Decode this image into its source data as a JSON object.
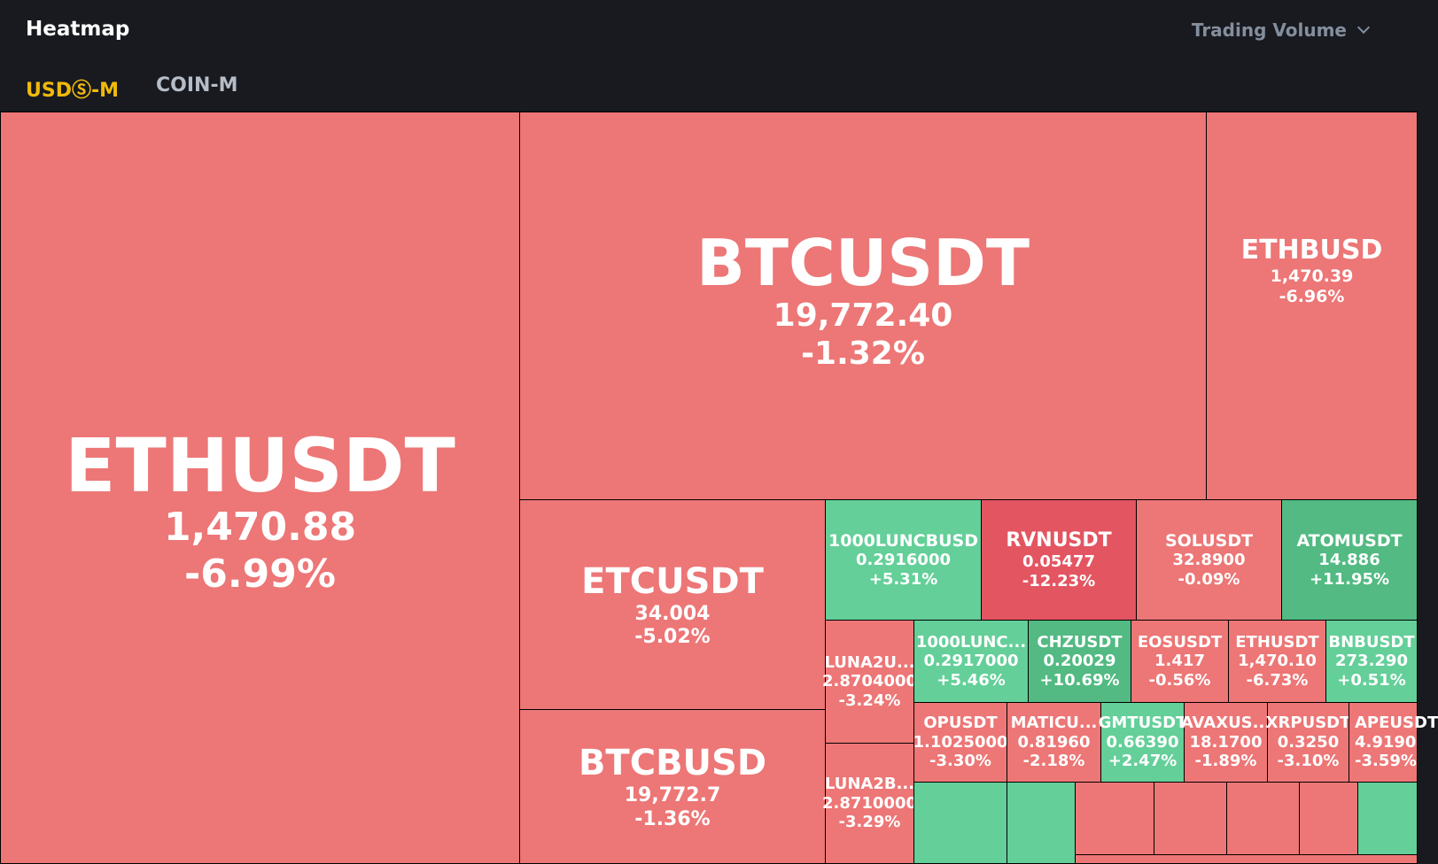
{
  "header": {
    "title": "Heatmap",
    "metric_selector": "Trading Volume",
    "tabs": [
      {
        "label": "USDⓈ-M",
        "active": true
      },
      {
        "label": "COIN-M",
        "active": false
      }
    ]
  },
  "colors": {
    "negative": "#ed7676",
    "negative_strong": "#e35561",
    "positive": "#64cf99",
    "positive_strong": "#52ba82",
    "accent": "#f0b90b",
    "background": "#181a20"
  },
  "tiles": {
    "ethusdt": {
      "symbol": "ETHUSDT",
      "price": "1,470.88",
      "change": "-6.99%"
    },
    "btcusdt": {
      "symbol": "BTCUSDT",
      "price": "19,772.40",
      "change": "-1.32%"
    },
    "ethbusd": {
      "symbol": "ETHBUSD",
      "price": "1,470.39",
      "change": "-6.96%"
    },
    "etcusdt": {
      "symbol": "ETCUSDT",
      "price": "34.004",
      "change": "-5.02%"
    },
    "btcbusd": {
      "symbol": "BTCBUSD",
      "price": "19,772.7",
      "change": "-1.36%"
    },
    "luncbusd": {
      "symbol": "1000LUNCBUSD",
      "price": "0.2916000",
      "change": "+5.31%"
    },
    "rvnusdt": {
      "symbol": "RVNUSDT",
      "price": "0.05477",
      "change": "-12.23%"
    },
    "solusdt": {
      "symbol": "SOLUSDT",
      "price": "32.8900",
      "change": "-0.09%"
    },
    "atomusdt": {
      "symbol": "ATOMUSDT",
      "price": "14.886",
      "change": "+11.95%"
    },
    "luna2usdt": {
      "symbol": "LUNA2U...",
      "price": "2.8704000",
      "change": "-3.24%"
    },
    "luncusdt": {
      "symbol": "1000LUNC...",
      "price": "0.2917000",
      "change": "+5.46%"
    },
    "chzusdt": {
      "symbol": "CHZUSDT",
      "price": "0.20029",
      "change": "+10.69%"
    },
    "eosusdt": {
      "symbol": "EOSUSDT",
      "price": "1.417",
      "change": "-0.56%"
    },
    "ethusdt2": {
      "symbol": "ETHUSDT",
      "price": "1,470.10",
      "change": "-6.73%"
    },
    "bnbusdt": {
      "symbol": "BNBUSDT",
      "price": "273.290",
      "change": "+0.51%"
    },
    "luna2busd": {
      "symbol": "LUNA2B...",
      "price": "2.8710000",
      "change": "-3.29%"
    },
    "opusdt": {
      "symbol": "OPUSDT",
      "price": "1.1025000",
      "change": "-3.30%"
    },
    "maticusdt": {
      "symbol": "MATICU...",
      "price": "0.81960",
      "change": "-2.18%"
    },
    "gmtusdt": {
      "symbol": "GMTUSDT",
      "price": "0.66390",
      "change": "+2.47%"
    },
    "avaxusdt": {
      "symbol": "AVAXUS...",
      "price": "18.1700",
      "change": "-1.89%"
    },
    "xrpusdt": {
      "symbol": "XRPUSDT",
      "price": "0.3250",
      "change": "-3.10%"
    },
    "apeusdt": {
      "symbol": "APEUSDT",
      "price": "4.9190",
      "change": "-3.59%"
    }
  }
}
